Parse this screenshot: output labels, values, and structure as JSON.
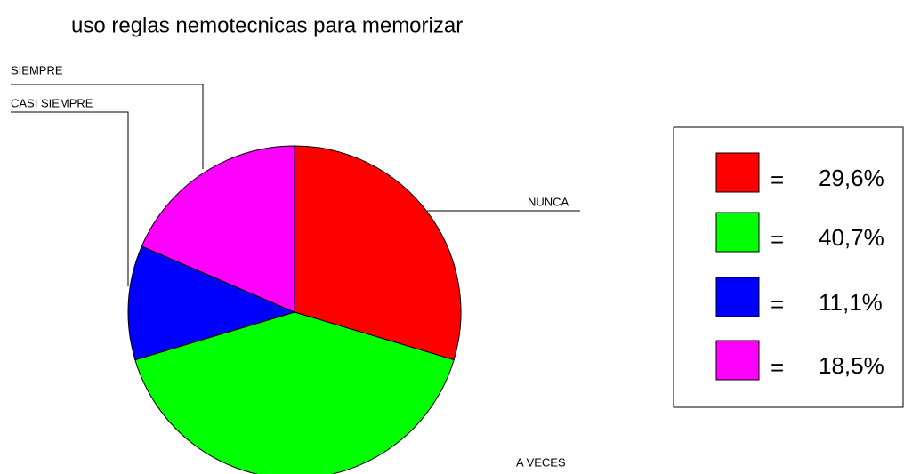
{
  "chart_data": {
    "type": "pie",
    "title": "uso reglas nemotecnicas para memorizar",
    "categories": [
      "NUNCA",
      "A VECES",
      "CASI SIEMPRE",
      "SIEMPRE"
    ],
    "values": [
      29.6,
      40.7,
      11.1,
      18.5
    ],
    "value_labels": [
      "29,6%",
      "40,7%",
      "11,1%",
      "18,5%"
    ],
    "colors": [
      "#ff0000",
      "#00ff00",
      "#0000ff",
      "#ff00ff"
    ],
    "legend_symbol": "=",
    "legend": "right"
  }
}
